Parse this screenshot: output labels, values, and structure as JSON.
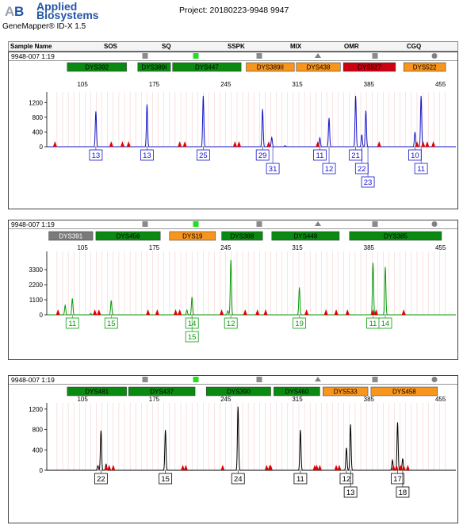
{
  "header": {
    "brand_line1": "Applied",
    "brand_line2": "Biosystems",
    "app_name": "GeneMapper® ID-X  1.5",
    "project": "Project: 20180223-9948 9947"
  },
  "columns": [
    "Sample Name",
    "SOS",
    "SQ",
    "SSPK",
    "MIX",
    "OMR",
    "CGQ"
  ],
  "marker_icons": [
    "gray-square-icon",
    "green-square-icon",
    "gray-square-icon",
    "gray-triangle-icon",
    "gray-square-icon",
    "gray-circle-icon"
  ],
  "colors": {
    "blue": "#1515c8",
    "green": "#0a9a0a",
    "black": "#000000",
    "marker_green": "#0b8a12",
    "marker_orange": "#f7951d",
    "marker_red": "#cc0011",
    "marker_gray": "#7a7a7a",
    "peak_red": "#e00000"
  },
  "x_ticks": [
    105,
    175,
    245,
    315,
    385,
    455
  ],
  "panels": [
    {
      "sample": "9948-007  1:19",
      "dye": "blue",
      "ymax": 1400,
      "y_ticks": [
        0,
        400,
        800,
        1200
      ],
      "markers": [
        {
          "label": "DYS392",
          "color": "green",
          "from": 90,
          "to": 148
        },
        {
          "label": "DYS389I",
          "color": "green",
          "from": 159,
          "to": 191
        },
        {
          "label": "DYS447",
          "color": "green",
          "from": 193,
          "to": 260
        },
        {
          "label": "DYS389II",
          "color": "orange",
          "from": 265,
          "to": 312
        },
        {
          "label": "DYS438",
          "color": "orange",
          "from": 314,
          "to": 357
        },
        {
          "label": "DYS527",
          "color": "red",
          "from": 360,
          "to": 411
        },
        {
          "label": "DYS522",
          "color": "orange",
          "from": 419,
          "to": 460
        }
      ],
      "peaks": [
        [
          118,
          960
        ],
        [
          168,
          1150
        ],
        [
          223,
          1380
        ],
        [
          281,
          1020
        ],
        [
          290,
          250
        ],
        [
          303,
          30
        ],
        [
          337,
          240
        ],
        [
          346,
          780
        ],
        [
          372,
          1380
        ],
        [
          378,
          330
        ],
        [
          382,
          980
        ],
        [
          430,
          400
        ],
        [
          436,
          1380
        ]
      ],
      "red_marks": [
        78,
        133,
        144,
        150,
        200,
        205,
        254,
        258,
        287,
        335,
        395,
        432,
        438,
        442,
        448
      ],
      "alleles": [
        {
          "x": 118,
          "row": 0,
          "label": "13"
        },
        {
          "x": 168,
          "row": 0,
          "label": "13"
        },
        {
          "x": 223,
          "row": 0,
          "label": "25"
        },
        {
          "x": 281,
          "row": 0,
          "label": "29"
        },
        {
          "x": 291,
          "row": 1,
          "label": "31"
        },
        {
          "x": 337,
          "row": 0,
          "label": "11"
        },
        {
          "x": 346,
          "row": 1,
          "label": "12"
        },
        {
          "x": 372,
          "row": 0,
          "label": "21"
        },
        {
          "x": 378,
          "row": 1,
          "label": "22"
        },
        {
          "x": 384,
          "row": 2,
          "label": "23"
        },
        {
          "x": 430,
          "row": 0,
          "label": "10"
        },
        {
          "x": 436,
          "row": 1,
          "label": "11"
        }
      ]
    },
    {
      "sample": "9948-007  1:19",
      "dye": "green",
      "ymax": 4400,
      "y_ticks": [
        0,
        1100,
        2200,
        3300
      ],
      "markers": [
        {
          "label": "DYS391",
          "color": "gray",
          "from": 72,
          "to": 115
        },
        {
          "label": "DYS456",
          "color": "green",
          "from": 118,
          "to": 181
        },
        {
          "label": "DYS19",
          "color": "orange",
          "from": 190,
          "to": 235
        },
        {
          "label": "DYS388",
          "color": "green",
          "from": 241,
          "to": 281
        },
        {
          "label": "DYS448",
          "color": "green",
          "from": 290,
          "to": 356
        },
        {
          "label": "DYS385",
          "color": "green",
          "from": 366,
          "to": 456
        }
      ],
      "peaks": [
        [
          88,
          700
        ],
        [
          95,
          1200
        ],
        [
          133,
          1050
        ],
        [
          207,
          350
        ],
        [
          212,
          1300
        ],
        [
          250,
          4000
        ],
        [
          317,
          2000
        ],
        [
          389,
          3800
        ],
        [
          401,
          3500
        ],
        [
          113,
          100
        ],
        [
          247,
          300
        ]
      ],
      "red_marks": [
        81,
        117,
        121,
        169,
        178,
        196,
        200,
        241,
        264,
        276,
        284,
        324,
        343,
        353,
        364,
        389,
        392,
        419
      ],
      "alleles": [
        {
          "x": 95,
          "row": 0,
          "label": "11"
        },
        {
          "x": 133,
          "row": 0,
          "label": "15"
        },
        {
          "x": 212,
          "row": 0,
          "label": "14"
        },
        {
          "x": 212,
          "row": 1,
          "label": "15"
        },
        {
          "x": 250,
          "row": 0,
          "label": "12"
        },
        {
          "x": 317,
          "row": 0,
          "label": "19"
        },
        {
          "x": 389,
          "row": 0,
          "label": "11"
        },
        {
          "x": 401,
          "row": 0,
          "label": "14"
        }
      ]
    },
    {
      "sample": "9948-007  1:19",
      "dye": "black",
      "ymax": 1260,
      "y_ticks": [
        0,
        400,
        800,
        1200
      ],
      "markers": [
        {
          "label": "DYS481",
          "color": "green",
          "from": 90,
          "to": 148
        },
        {
          "label": "DYS437",
          "color": "green",
          "from": 150,
          "to": 215
        },
        {
          "label": "DYS390",
          "color": "green",
          "from": 226,
          "to": 289
        },
        {
          "label": "DYS460",
          "color": "green",
          "from": 292,
          "to": 337
        },
        {
          "label": "DYS533",
          "color": "orange",
          "from": 340,
          "to": 384
        },
        {
          "label": "DYS458",
          "color": "orange",
          "from": 387,
          "to": 452
        }
      ],
      "peaks": [
        [
          120,
          90
        ],
        [
          123,
          780
        ],
        [
          128,
          120
        ],
        [
          186,
          790
        ],
        [
          257,
          1250
        ],
        [
          318,
          790
        ],
        [
          363,
          440
        ],
        [
          367,
          900
        ],
        [
          408,
          200
        ],
        [
          413,
          940
        ],
        [
          418,
          230
        ]
      ],
      "red_marks": [
        128,
        131,
        135,
        203,
        206,
        242,
        285,
        288,
        289,
        332,
        334,
        337,
        353,
        356,
        409,
        412,
        416,
        419,
        423
      ],
      "alleles": [
        {
          "x": 123,
          "row": 0,
          "label": "22"
        },
        {
          "x": 186,
          "row": 0,
          "label": "15"
        },
        {
          "x": 257,
          "row": 0,
          "label": "24"
        },
        {
          "x": 318,
          "row": 0,
          "label": "11"
        },
        {
          "x": 363,
          "row": 0,
          "label": "12"
        },
        {
          "x": 367,
          "row": 1,
          "label": "13"
        },
        {
          "x": 413,
          "row": 0,
          "label": "17"
        },
        {
          "x": 418,
          "row": 1,
          "label": "18"
        }
      ]
    }
  ]
}
